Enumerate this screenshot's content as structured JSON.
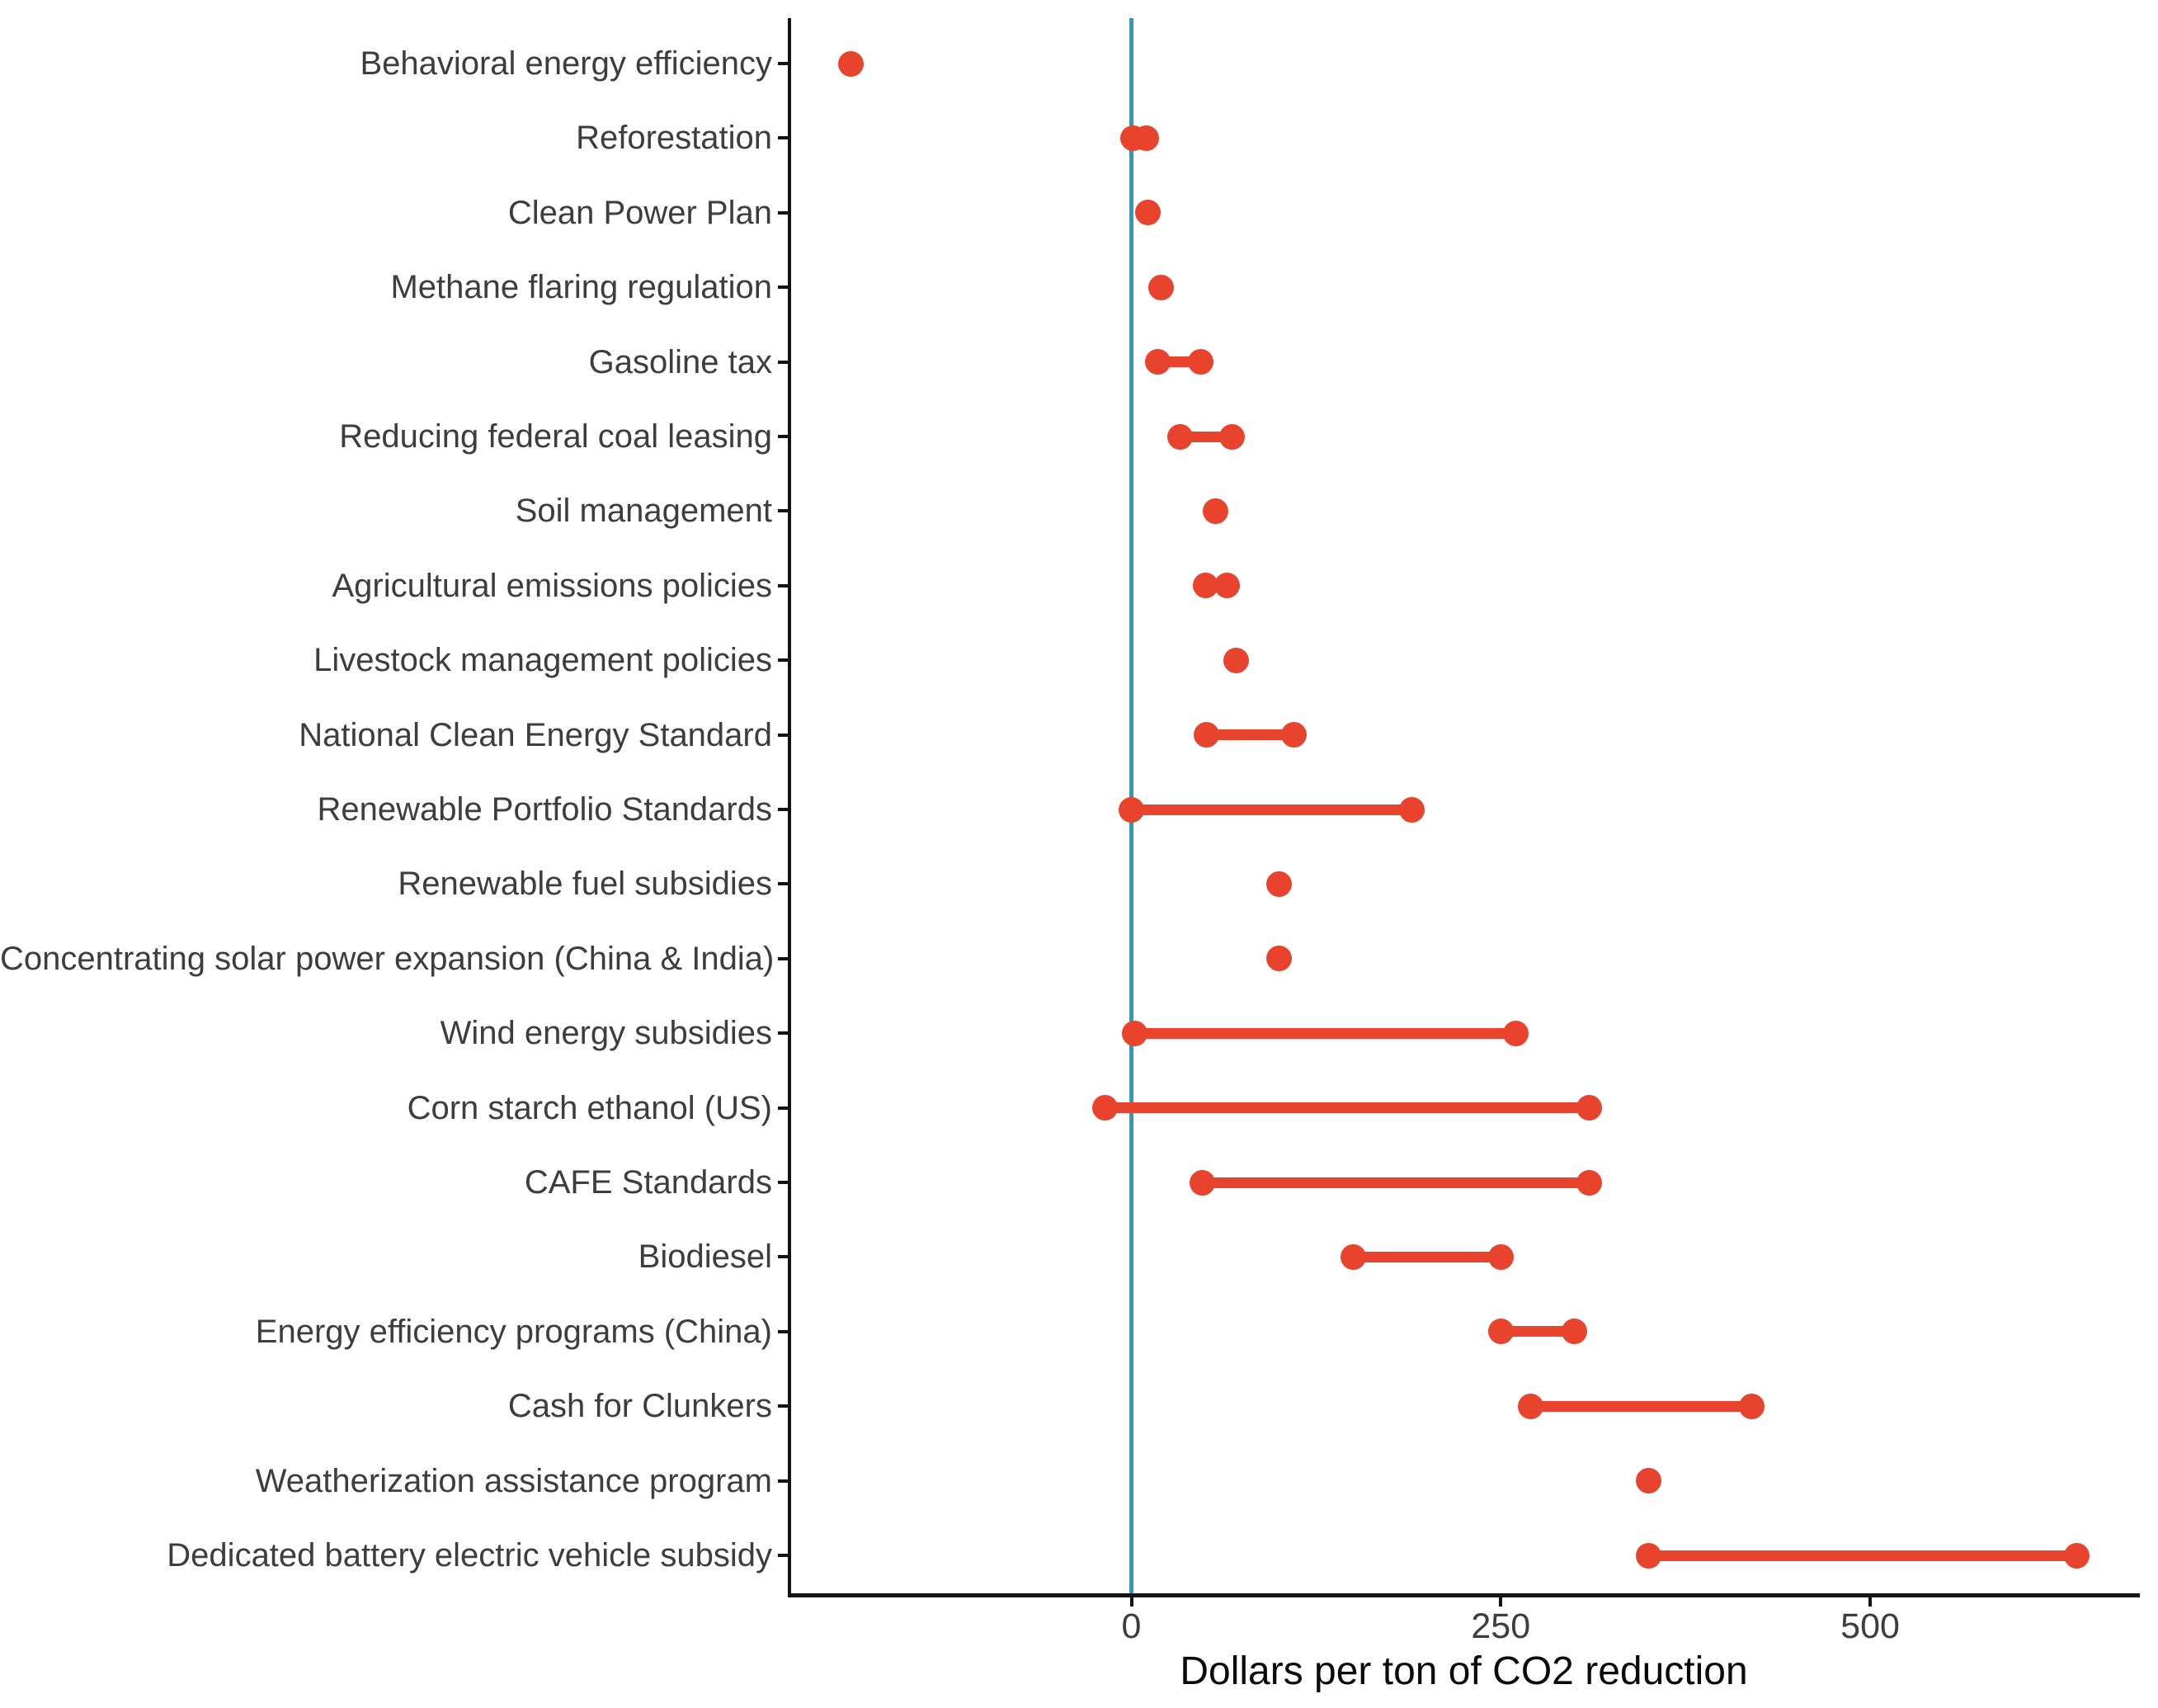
{
  "chart_data": {
    "type": "scatter",
    "subtype": "dumbbell-range-dot-plot",
    "title": "",
    "xlabel": "Dollars per ton of CO2 reduction",
    "ylabel": "",
    "xlim": [
      -232,
      682
    ],
    "xticks": [
      0,
      250,
      500
    ],
    "xtick_labels": [
      "0",
      "250",
      "500"
    ],
    "zero_reference_line": 0,
    "grid": "off",
    "legend": "none",
    "categories": [
      "Behavioral energy efficiency",
      "Reforestation",
      "Clean Power Plan",
      "Methane flaring regulation",
      "Gasoline tax",
      "Reducing federal coal leasing",
      "Soil management",
      "Agricultural emissions policies",
      "Livestock management policies",
      "National Clean Energy Standard",
      "Renewable Portfolio Standards",
      "Renewable fuel subsidies",
      "Concentrating solar power expansion (China & India)",
      "Wind energy subsidies",
      "Corn starch ethanol (US)",
      "CAFE Standards",
      "Biodiesel",
      "Energy efficiency programs (China)",
      "Cash for Clunkers",
      "Weatherization assistance program",
      "Dedicated battery electric vehicle subsidy"
    ],
    "values": [
      [
        -190,
        -190
      ],
      [
        1,
        10
      ],
      [
        11,
        11
      ],
      [
        20,
        20
      ],
      [
        18,
        47
      ],
      [
        33,
        68
      ],
      [
        57,
        57
      ],
      [
        50,
        65
      ],
      [
        71,
        71
      ],
      [
        51,
        110
      ],
      [
        0,
        190
      ],
      [
        100,
        100
      ],
      [
        100,
        100
      ],
      [
        2,
        260
      ],
      [
        -18,
        310
      ],
      [
        48,
        310
      ],
      [
        150,
        250
      ],
      [
        250,
        300
      ],
      [
        270,
        420
      ],
      [
        350,
        350
      ],
      [
        350,
        640
      ]
    ],
    "colors": {
      "point": "#E8432C",
      "segment": "#E8432C",
      "zero_line": "#299DBD",
      "axis": "#141414",
      "tick_label": "#3D3D3D",
      "axis_title": "#0A0A0A",
      "background": "#FFFFFF"
    }
  }
}
